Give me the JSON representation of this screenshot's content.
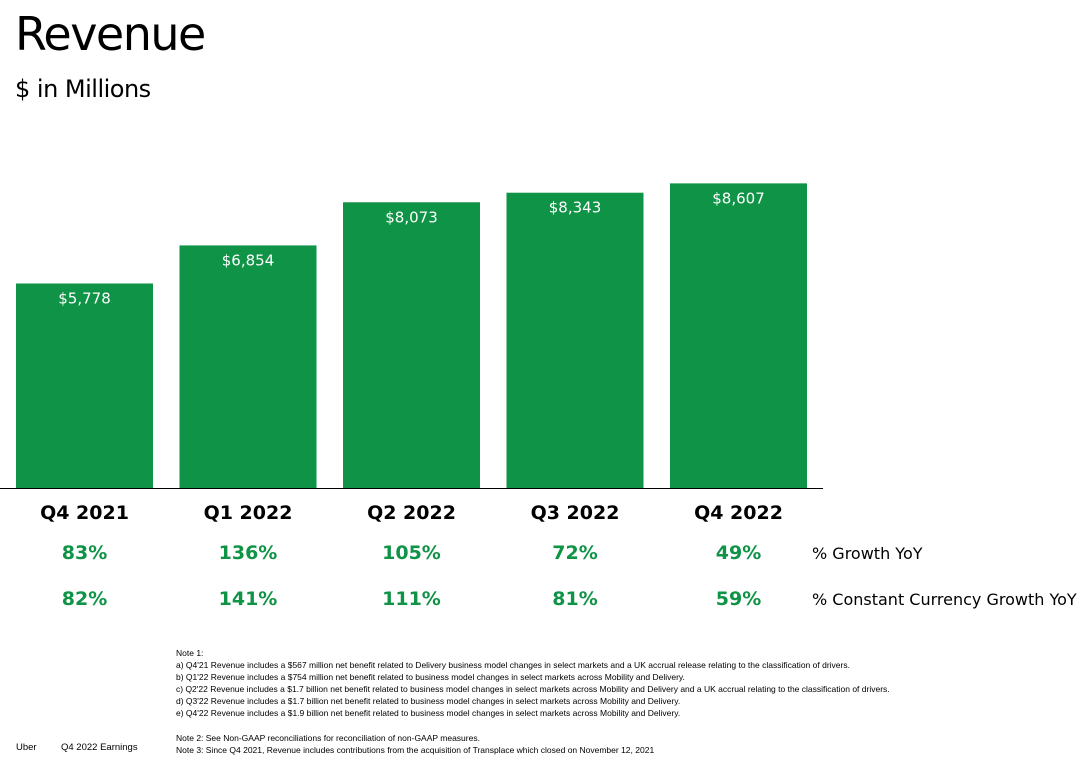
{
  "header": {
    "title": "Revenue",
    "subtitle": "$ in Millions"
  },
  "chart_data": {
    "type": "bar",
    "categories": [
      "Q4 2021",
      "Q1 2022",
      "Q2 2022",
      "Q3 2022",
      "Q4 2022"
    ],
    "values": [
      5778,
      6854,
      8073,
      8343,
      8607
    ],
    "data_labels": [
      "$5,778",
      "$6,854",
      "$8,073",
      "$8,343",
      "$8,607"
    ],
    "bar_color": "#0f9346",
    "grid": false,
    "ylim": [
      0,
      9550
    ]
  },
  "metrics": [
    {
      "label": "% Growth YoY",
      "values": [
        "83%",
        "136%",
        "105%",
        "72%",
        "49%"
      ]
    },
    {
      "label": "% Constant Currency Growth YoY",
      "values": [
        "82%",
        "141%",
        "111%",
        "81%",
        "59%"
      ]
    }
  ],
  "notes": [
    "Note 1:",
    "a) Q4'21 Revenue includes a $567 million net benefit related to Delivery business model changes in select markets and a UK accrual release relating to the classification of drivers.",
    "b) Q1'22 Revenue includes a $754 million net benefit related to business model changes in select markets across Mobility and Delivery.",
    "c) Q2'22 Revenue includes a $1.7 billion net benefit related to business model changes in select markets across Mobility and Delivery and a UK accrual relating to the classification of drivers.",
    "d) Q3'22 Revenue includes a $1.7 billion net benefit related to business model changes in select markets across Mobility and Delivery.",
    "e) Q4'22 Revenue includes a $1.9 billion net benefit related to business model changes in select markets across Mobility and Delivery.",
    "",
    "Note 2: See Non-GAAP reconciliations for reconciliation of non-GAAP measures.",
    "Note 3: Since Q4 2021, Revenue includes contributions from the acquisition of Transplace which closed on November 12, 2021"
  ],
  "footer": {
    "brand": "Uber",
    "report": "Q4 2022 Earnings"
  }
}
